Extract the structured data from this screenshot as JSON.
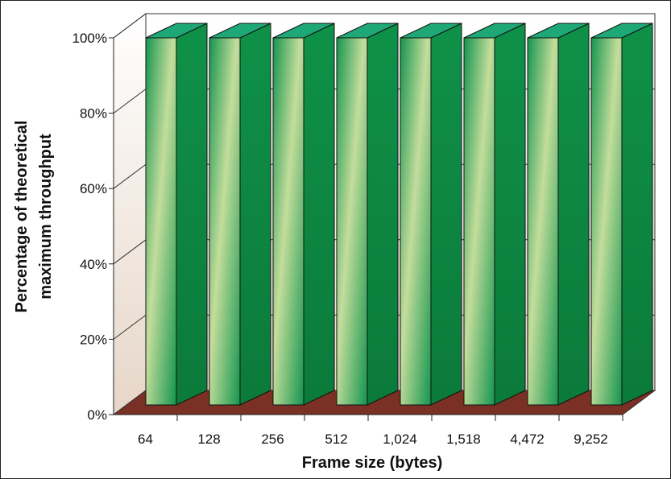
{
  "chart_data": {
    "type": "bar",
    "style": "3d-column",
    "categories": [
      "64",
      "128",
      "256",
      "512",
      "1,024",
      "1,518",
      "4,472",
      "9,252"
    ],
    "values": [
      100,
      100,
      100,
      100,
      100,
      100,
      100,
      100
    ],
    "title": "",
    "xlabel": "Frame size (bytes)",
    "ylabel_lines": [
      "Percentage of theoretical",
      "maximum throughput"
    ],
    "ylim": [
      0,
      100
    ],
    "yticks": [
      0,
      20,
      40,
      60,
      80,
      100
    ],
    "ytick_labels": [
      "0%",
      "20%",
      "40%",
      "60%",
      "80%",
      "100%"
    ],
    "grid": true,
    "legend": "none",
    "colors": {
      "bar_front_light": "#c4dd9c",
      "bar_front_dark": "#14954e",
      "bar_side": "#0f9148",
      "bar_top": "#1ea878",
      "floor": "#7a3024",
      "wall_top": "#ffffff",
      "wall_bottom": "#e6d6c8"
    }
  }
}
